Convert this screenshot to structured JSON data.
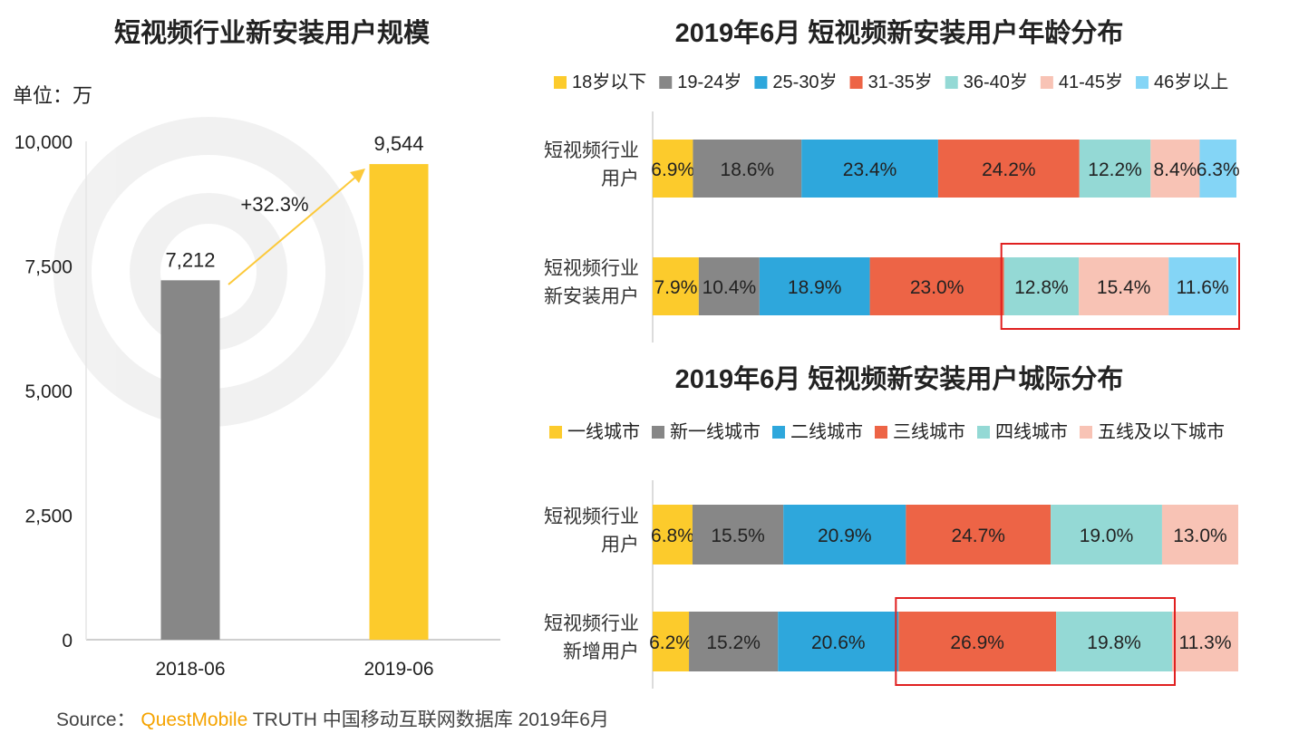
{
  "colors": {
    "gray": "#878787",
    "yellow": "#fccb2c",
    "age": [
      "#fccb2c",
      "#878787",
      "#2ea7dc",
      "#ed6446",
      "#94d9d5",
      "#f8c3b5",
      "#84d5f6"
    ],
    "city": [
      "#fccb2c",
      "#878787",
      "#2ea7dc",
      "#ed6446",
      "#94d9d5",
      "#f8c3b5"
    ],
    "highlight": "#e02020",
    "arrow": "#fcc93a"
  },
  "chart_data": [
    {
      "type": "bar",
      "title": "短视频行业新安装用户规模",
      "unit_label": "单位：万",
      "categories": [
        "2018-06",
        "2019-06"
      ],
      "values": [
        7212,
        9544
      ],
      "value_labels": [
        "7,212",
        "9,544"
      ],
      "ylim": [
        0,
        10000
      ],
      "yticks": [
        0,
        2500,
        5000,
        7500,
        10000
      ],
      "ytick_labels": [
        "0",
        "2,500",
        "5,000",
        "7,500",
        "10,000"
      ],
      "growth_label": "+32.3%",
      "grid": false
    },
    {
      "type": "bar",
      "orientation": "horizontal-stacked",
      "title": "2019年6月 短视频新安装用户年龄分布",
      "legend": [
        "18岁以下",
        "19-24岁",
        "25-30岁",
        "31-35岁",
        "36-40岁",
        "41-45岁",
        "46岁以上"
      ],
      "categories": [
        [
          "短视频行业",
          "用户"
        ],
        [
          "短视频行业",
          "新安装用户"
        ]
      ],
      "series": [
        {
          "name": "18岁以下",
          "values": [
            6.9,
            7.9
          ]
        },
        {
          "name": "19-24岁",
          "values": [
            18.6,
            10.4
          ]
        },
        {
          "name": "25-30岁",
          "values": [
            23.4,
            18.9
          ]
        },
        {
          "name": "31-35岁",
          "values": [
            24.2,
            23.0
          ]
        },
        {
          "name": "36-40岁",
          "values": [
            12.2,
            12.8
          ]
        },
        {
          "name": "41-45岁",
          "values": [
            8.4,
            15.4
          ]
        },
        {
          "name": "46岁以上",
          "values": [
            6.3,
            11.6
          ]
        }
      ],
      "labels": [
        [
          "6.9%",
          "18.6%",
          "23.4%",
          "24.2%",
          "12.2%",
          "8.4%",
          "6.3%"
        ],
        [
          "7.9%",
          "10.4%",
          "18.9%",
          "23.0%",
          "12.8%",
          "15.4%",
          "11.6%"
        ]
      ],
      "highlight": {
        "row": 1,
        "from_series": 4,
        "to_series": 6
      }
    },
    {
      "type": "bar",
      "orientation": "horizontal-stacked",
      "title": "2019年6月 短视频新安装用户城际分布",
      "legend": [
        "一线城市",
        "新一线城市",
        "二线城市",
        "三线城市",
        "四线城市",
        "五线及以下城市"
      ],
      "categories": [
        [
          "短视频行业",
          "用户"
        ],
        [
          "短视频行业",
          "新增用户"
        ]
      ],
      "series": [
        {
          "name": "一线城市",
          "values": [
            6.8,
            6.2
          ]
        },
        {
          "name": "新一线城市",
          "values": [
            15.5,
            15.2
          ]
        },
        {
          "name": "二线城市",
          "values": [
            20.9,
            20.6
          ]
        },
        {
          "name": "三线城市",
          "values": [
            24.7,
            26.9
          ]
        },
        {
          "name": "四线城市",
          "values": [
            19.0,
            19.8
          ]
        },
        {
          "name": "五线及以下城市",
          "values": [
            13.0,
            11.3
          ]
        }
      ],
      "labels": [
        [
          "6.8%",
          "15.5%",
          "20.9%",
          "24.7%",
          "19.0%",
          "13.0%"
        ],
        [
          "6.2%",
          "15.2%",
          "20.6%",
          "26.9%",
          "19.8%",
          "11.3%"
        ]
      ],
      "highlight": {
        "row": 1,
        "from_series": 3,
        "to_series": 4
      }
    }
  ],
  "source": {
    "prefix": "Source：",
    "brand": "QuestMobile",
    "rest": "TRUTH 中国移动互联网数据库 2019年6月"
  }
}
